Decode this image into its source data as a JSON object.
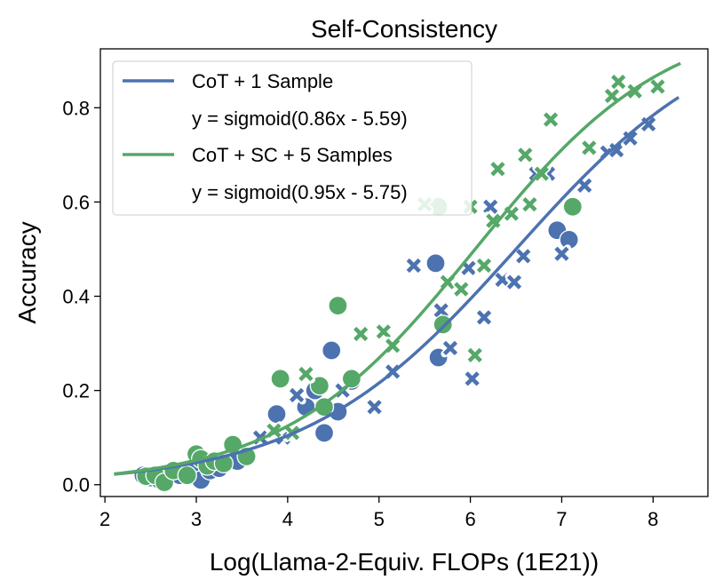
{
  "chart_data": {
    "type": "scatter",
    "title": "Self-Consistency",
    "xlabel": "Log(Llama-2-Equiv. FLOPs (1E21))",
    "ylabel": "Accuracy",
    "xlim": [
      1.95,
      8.6
    ],
    "ylim": [
      -0.025,
      0.925
    ],
    "xticks": [
      2,
      3,
      4,
      5,
      6,
      7,
      8
    ],
    "yticks": [
      0.0,
      0.2,
      0.4,
      0.6,
      0.8
    ],
    "xtick_labels": [
      "2",
      "3",
      "4",
      "5",
      "6",
      "7",
      "8"
    ],
    "ytick_labels": [
      "0.0",
      "0.2",
      "0.4",
      "0.6",
      "0.8"
    ],
    "legend_position": "top-left",
    "series": [
      {
        "name": "CoT + 1 Sample",
        "equation": "y = sigmoid(0.86x - 5.59)",
        "color": "#4c72b0",
        "fit": {
          "a": 0.86,
          "b": -5.59,
          "x_range": [
            2.1,
            8.28
          ]
        },
        "circles": [
          [
            2.42,
            0.02
          ],
          [
            2.5,
            0.015
          ],
          [
            2.6,
            0.01
          ],
          [
            2.7,
            0.02
          ],
          [
            2.82,
            0.02
          ],
          [
            2.95,
            0.025
          ],
          [
            3.05,
            0.01
          ],
          [
            3.15,
            0.03
          ],
          [
            3.25,
            0.035
          ],
          [
            3.45,
            0.05
          ],
          [
            3.88,
            0.15
          ],
          [
            4.2,
            0.165
          ],
          [
            4.3,
            0.2
          ],
          [
            4.4,
            0.11
          ],
          [
            4.48,
            0.285
          ],
          [
            4.55,
            0.155
          ],
          [
            4.7,
            0.22
          ],
          [
            5.62,
            0.47
          ],
          [
            5.65,
            0.27
          ],
          [
            6.95,
            0.54
          ],
          [
            7.08,
            0.52
          ]
        ],
        "crosses": [
          [
            3.7,
            0.1
          ],
          [
            3.95,
            0.1
          ],
          [
            4.1,
            0.19
          ],
          [
            4.6,
            0.2
          ],
          [
            4.95,
            0.165
          ],
          [
            5.15,
            0.24
          ],
          [
            5.38,
            0.465
          ],
          [
            5.68,
            0.37
          ],
          [
            5.78,
            0.29
          ],
          [
            5.98,
            0.46
          ],
          [
            6.02,
            0.225
          ],
          [
            6.15,
            0.355
          ],
          [
            6.22,
            0.59
          ],
          [
            6.35,
            0.435
          ],
          [
            6.48,
            0.43
          ],
          [
            6.58,
            0.485
          ],
          [
            6.72,
            0.66
          ],
          [
            6.85,
            0.66
          ],
          [
            7.0,
            0.49
          ],
          [
            7.25,
            0.635
          ],
          [
            7.5,
            0.705
          ],
          [
            7.6,
            0.71
          ],
          [
            7.75,
            0.735
          ],
          [
            7.95,
            0.765
          ]
        ]
      },
      {
        "name": "CoT + SC + 5 Samples",
        "equation": "y = sigmoid(0.95x - 5.75)",
        "color": "#55a868",
        "fit": {
          "a": 0.95,
          "b": -5.75,
          "x_range": [
            2.1,
            8.3
          ]
        },
        "circles": [
          [
            2.45,
            0.018
          ],
          [
            2.55,
            0.02
          ],
          [
            2.65,
            0.005
          ],
          [
            2.75,
            0.03
          ],
          [
            2.9,
            0.02
          ],
          [
            3.0,
            0.065
          ],
          [
            3.05,
            0.055
          ],
          [
            3.12,
            0.04
          ],
          [
            3.2,
            0.05
          ],
          [
            3.3,
            0.045
          ],
          [
            3.4,
            0.085
          ],
          [
            3.55,
            0.06
          ],
          [
            3.92,
            0.225
          ],
          [
            4.35,
            0.21
          ],
          [
            4.4,
            0.165
          ],
          [
            4.55,
            0.38
          ],
          [
            4.7,
            0.225
          ],
          [
            5.65,
            0.59
          ],
          [
            5.7,
            0.34
          ],
          [
            7.12,
            0.59
          ]
        ],
        "crosses": [
          [
            3.85,
            0.115
          ],
          [
            4.05,
            0.11
          ],
          [
            4.2,
            0.235
          ],
          [
            4.8,
            0.32
          ],
          [
            5.05,
            0.325
          ],
          [
            5.15,
            0.295
          ],
          [
            5.5,
            0.595
          ],
          [
            5.75,
            0.43
          ],
          [
            5.9,
            0.415
          ],
          [
            6.0,
            0.59
          ],
          [
            6.05,
            0.275
          ],
          [
            6.15,
            0.465
          ],
          [
            6.25,
            0.56
          ],
          [
            6.3,
            0.67
          ],
          [
            6.45,
            0.575
          ],
          [
            6.6,
            0.7
          ],
          [
            6.65,
            0.595
          ],
          [
            6.78,
            0.66
          ],
          [
            6.88,
            0.775
          ],
          [
            7.3,
            0.715
          ],
          [
            7.55,
            0.825
          ],
          [
            7.62,
            0.855
          ],
          [
            7.8,
            0.835
          ],
          [
            8.05,
            0.845
          ]
        ]
      }
    ]
  }
}
